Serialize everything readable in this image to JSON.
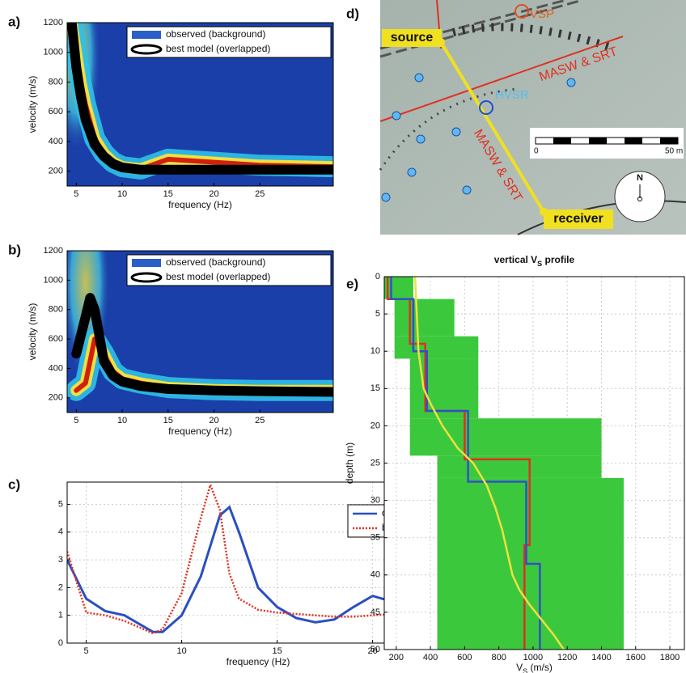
{
  "chart_data": [
    {
      "panel": "a)",
      "type": "dispersion",
      "xlabel": "frequency (Hz)",
      "ylabel": "velocity (m/s)",
      "xlim": [
        4,
        33
      ],
      "xticks": [
        5,
        10,
        15,
        20,
        25
      ],
      "ylim": [
        100,
        1200
      ],
      "yticks": [
        200,
        400,
        600,
        800,
        1000,
        1200
      ],
      "x": [
        4.5,
        5,
        5.5,
        6,
        7,
        8,
        9,
        10,
        12,
        15,
        20,
        25,
        33
      ],
      "series": [
        {
          "name": "observed (background)",
          "color": "#2a5fc8",
          "values": [
            1200,
            1000,
            800,
            650,
            420,
            320,
            260,
            230,
            215,
            280,
            260,
            240,
            230
          ]
        },
        {
          "name": "best model (overlapped)",
          "color": "#000000",
          "values": [
            1200,
            900,
            700,
            550,
            380,
            300,
            250,
            225,
            210,
            210,
            210,
            210,
            210
          ]
        }
      ]
    },
    {
      "panel": "b)",
      "type": "dispersion",
      "xlabel": "frequency (Hz)",
      "ylabel": "velocity (m/s)",
      "xlim": [
        4,
        33
      ],
      "xticks": [
        5,
        10,
        15,
        20,
        25
      ],
      "ylim": [
        100,
        1200
      ],
      "yticks": [
        200,
        400,
        600,
        800,
        1000,
        1200
      ],
      "x": [
        5,
        6,
        6.5,
        7,
        8,
        9,
        10,
        12,
        15,
        20,
        25,
        33
      ],
      "series": [
        {
          "name": "observed (background)",
          "color": "#2a5fc8",
          "values": [
            250,
            300,
            450,
            600,
            500,
            380,
            330,
            300,
            270,
            255,
            250,
            250
          ]
        },
        {
          "name": "best model (overlapped)",
          "color": "#000000",
          "values": [
            500,
            750,
            880,
            800,
            450,
            350,
            310,
            280,
            260,
            250,
            245,
            240
          ]
        }
      ]
    },
    {
      "panel": "c)",
      "type": "line",
      "xlabel": "frequency (Hz)",
      "grid": true,
      "xlim": [
        4,
        24
      ],
      "xticks": [
        5,
        10,
        15,
        20
      ],
      "ylim": [
        0,
        5.8
      ],
      "yticks": [
        0,
        1,
        2,
        3,
        4,
        5
      ],
      "x": [
        4,
        5,
        6,
        7,
        8,
        8.5,
        9,
        10,
        11,
        11.5,
        12,
        12.5,
        13,
        14,
        15,
        16,
        17,
        18,
        19,
        20,
        21,
        22,
        23,
        24
      ],
      "series": [
        {
          "name": "observed",
          "color": "#2b4fc0",
          "dash": false,
          "values": [
            3.0,
            1.6,
            1.15,
            1.0,
            0.6,
            0.4,
            0.4,
            1.0,
            2.4,
            3.5,
            4.6,
            4.9,
            4.0,
            2.0,
            1.3,
            0.9,
            0.75,
            0.85,
            1.3,
            1.7,
            1.5,
            1.0,
            0.7,
            0.4
          ]
        },
        {
          "name": "best model",
          "color": "#e0301e",
          "dash": true,
          "values": [
            3.3,
            1.1,
            1.0,
            0.8,
            0.5,
            0.35,
            0.5,
            1.8,
            4.5,
            5.7,
            4.8,
            2.5,
            1.6,
            1.2,
            1.1,
            1.05,
            1.0,
            0.95,
            0.95,
            1.0,
            1.05,
            0.85,
            0.7,
            0.5
          ]
        }
      ]
    },
    {
      "panel": "e)",
      "type": "profile",
      "title": [
        "vertical V",
        "S",
        " profile"
      ],
      "xlabel": [
        "V",
        "S",
        " (m/s)"
      ],
      "ylabel": "depth (m)",
      "grid": true,
      "xlim": [
        130,
        1885
      ],
      "xticks": [
        200,
        400,
        600,
        800,
        1000,
        1200,
        1400,
        1600,
        1800
      ],
      "ylim": [
        0,
        50
      ],
      "yticks": [
        0,
        5,
        10,
        15,
        20,
        25,
        30,
        35,
        40,
        45,
        50
      ],
      "envelope": {
        "color": "#3cc83c",
        "layers": [
          {
            "depth": [
              0,
              3
            ],
            "vs": [
              100,
              300
            ]
          },
          {
            "depth": [
              3,
              8
            ],
            "vs": [
              190,
              540
            ]
          },
          {
            "depth": [
              8,
              11
            ],
            "vs": [
              190,
              680
            ]
          },
          {
            "depth": [
              11,
              19
            ],
            "vs": [
              280,
              680
            ]
          },
          {
            "depth": [
              19,
              24
            ],
            "vs": [
              280,
              1400
            ]
          },
          {
            "depth": [
              24,
              27
            ],
            "vs": [
              440,
              1400
            ]
          },
          {
            "depth": [
              27,
              50
            ],
            "vs": [
              440,
              1530
            ]
          }
        ]
      },
      "series": [
        {
          "color": "#e03020",
          "depth": [
            0,
            3,
            3,
            9,
            9,
            18,
            18,
            24.5,
            24.5,
            36,
            36,
            50
          ],
          "vs": [
            150,
            150,
            280,
            280,
            370,
            370,
            600,
            600,
            980,
            980,
            950,
            950
          ]
        },
        {
          "color": "#3050c8",
          "depth": [
            0,
            3,
            3,
            10,
            10,
            18,
            18,
            27.5,
            27.5,
            38.5,
            38.5,
            50
          ],
          "vs": [
            170,
            170,
            300,
            300,
            380,
            380,
            620,
            620,
            960,
            960,
            1040,
            1040
          ]
        },
        {
          "color": "#f0e040",
          "depth": [
            0,
            5,
            10,
            15,
            17,
            20,
            23,
            25,
            28,
            31,
            34,
            37,
            40,
            42,
            44,
            46,
            48,
            50
          ],
          "vs": [
            310,
            320,
            330,
            360,
            400,
            470,
            560,
            650,
            730,
            780,
            820,
            850,
            880,
            920,
            980,
            1050,
            1120,
            1180
          ]
        }
      ]
    }
  ],
  "map": {
    "panel": "d)",
    "source": "source",
    "receiver": "receiver",
    "line1": "MASW & SRT",
    "line2": "MASW & SRT",
    "hvsr": "HVSR",
    "vsp": "VSP",
    "scale0": "0",
    "scale50": "50 m",
    "north": "N"
  }
}
